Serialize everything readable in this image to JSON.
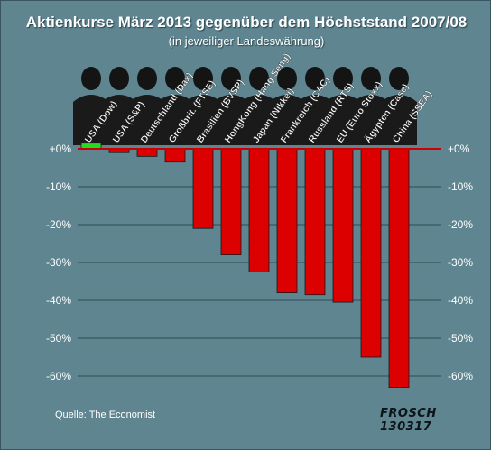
{
  "chart_data": {
    "type": "bar",
    "title": "Aktienkurse März 2013 gegenüber dem Höchststand 2007/08",
    "subtitle": "(in jeweiliger Landeswährung)",
    "categories": [
      "USA (Dow)",
      "USA (S&P)",
      "Deutschland (Dax)",
      "Großbrit. (FTSE)",
      "Brasilien (BVSP)",
      "HongKong (Hang Seng)",
      "Japan (Nikkei)",
      "Frankreich (CAC)",
      "Russland (RTS)",
      "EU (Euro Stoxx)",
      "Ägypten (Case)",
      "China (SSEA)"
    ],
    "values": [
      1.5,
      -1,
      -2,
      -3.5,
      -21,
      -28,
      -32.5,
      -38,
      -38.5,
      -40.5,
      -55,
      -63
    ],
    "ylim": [
      -65,
      0
    ],
    "yticks": [
      0,
      -10,
      -20,
      -30,
      -40,
      -50,
      -60
    ],
    "ytick_labels": [
      "+0%",
      "-10%",
      "-20%",
      "-30%",
      "-40%",
      "-50%",
      "-60%"
    ],
    "grid": true,
    "colors": {
      "positive": "#22dd22",
      "negative": "#dd0000",
      "background": "#5e8590",
      "grid": "#2f4a52",
      "zero_line": "#cc0000"
    }
  },
  "footer": {
    "source": "Quelle: The Economist",
    "signature": "FROSCH 130317"
  }
}
